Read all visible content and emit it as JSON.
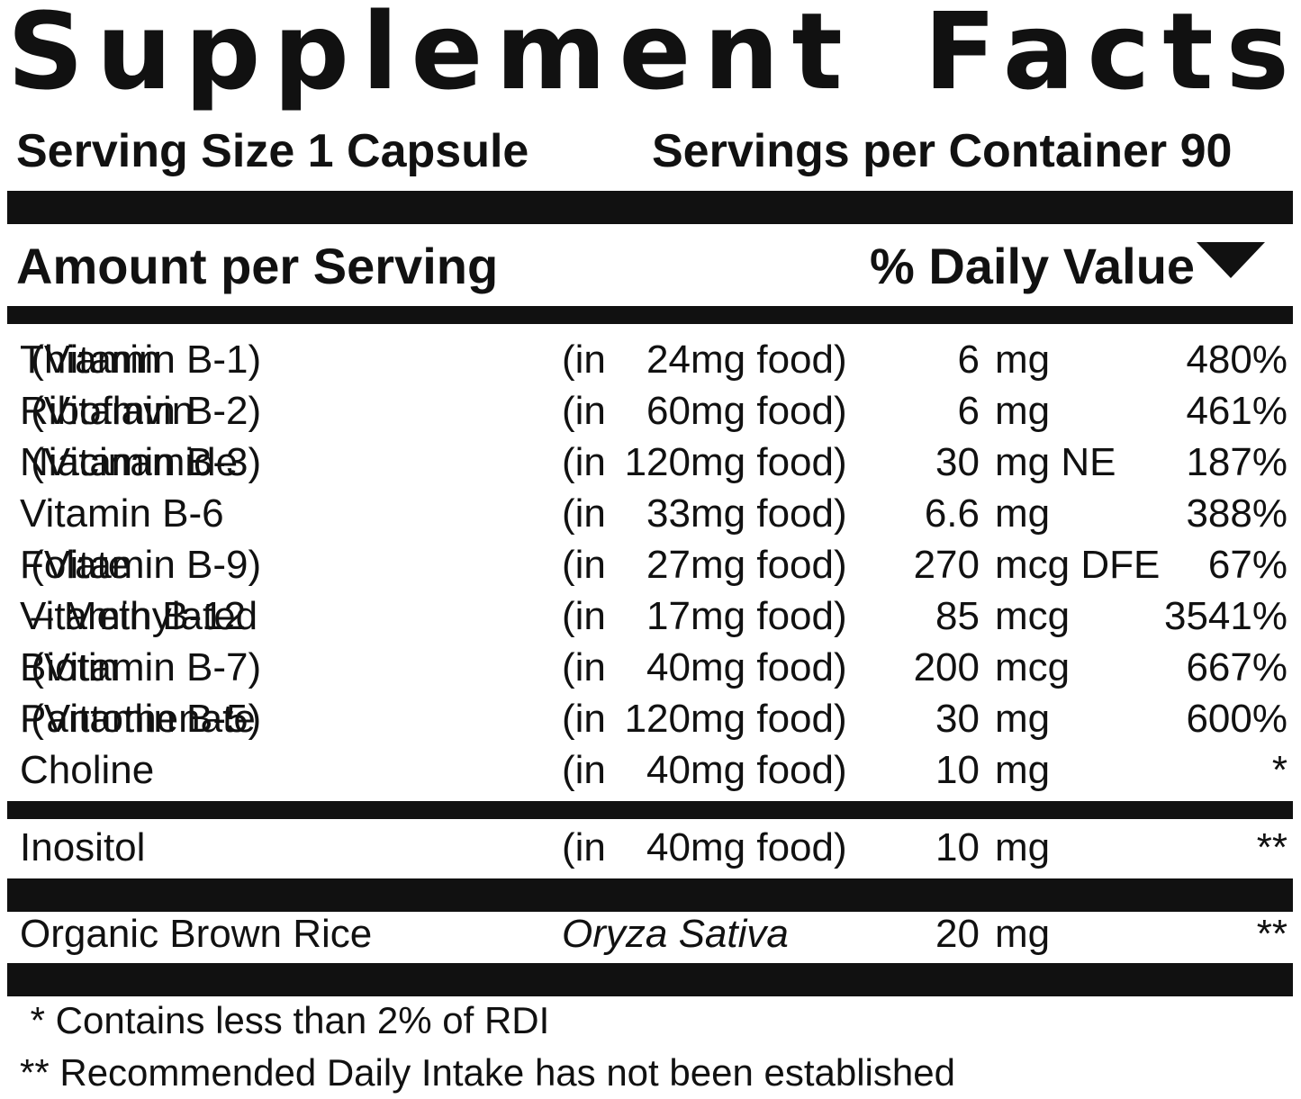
{
  "title": {
    "word1": "Supplement",
    "word2": "Facts"
  },
  "serving": {
    "size": "Serving Size 1 Capsule",
    "per_container": "Servings per Container 90"
  },
  "header": {
    "amount": "Amount per Serving",
    "daily_value": "% Daily Value"
  },
  "nutrients": [
    {
      "name": "Thiamin",
      "sub": " (Vitamin B-1)",
      "in": "(in",
      "food_amt": "24",
      "food_unit": "mg food)",
      "amount": "6",
      "unit": "mg",
      "dv": "480%"
    },
    {
      "name": "Riboflavin",
      "sub": " (Vitamin B-2)",
      "in": "(in",
      "food_amt": "60",
      "food_unit": "mg food)",
      "amount": "6",
      "unit": "mg",
      "dv": "461%"
    },
    {
      "name": "Niacinamide",
      "sub": " (Vitamin B-3)",
      "in": "(in",
      "food_amt": "120",
      "food_unit": "mg food)",
      "amount": "30",
      "unit": "mg NE",
      "dv": "187%"
    },
    {
      "name": "Vitamin B-6",
      "sub": "",
      "in": "(in",
      "food_amt": "33",
      "food_unit": "mg food)",
      "amount": "6.6",
      "unit": "mg",
      "dv": "388%"
    },
    {
      "name": "Folate",
      "sub": " (Vitamin B-9)",
      "in": "(in",
      "food_amt": "27",
      "food_unit": "mg food)",
      "amount": "270",
      "unit": "mcg DFE",
      "dv": "67%"
    },
    {
      "name": "Vitamin B-12",
      "sub": " – Methylated",
      "in": "(in",
      "food_amt": "17",
      "food_unit": "mg food)",
      "amount": "85",
      "unit": "mcg",
      "dv": "3541%"
    },
    {
      "name": "Biotin",
      "sub": " (Vitamin B-7)",
      "in": "(in",
      "food_amt": "40",
      "food_unit": "mg food)",
      "amount": "200",
      "unit": "mcg",
      "dv": "667%"
    },
    {
      "name": "Pantothenate",
      "sub": " (Vitamin B-5)",
      "in": "(in",
      "food_amt": "120",
      "food_unit": "mg food)",
      "amount": "30",
      "unit": "mg",
      "dv": "600%"
    },
    {
      "name": "Choline",
      "sub": "",
      "in": "(in",
      "food_amt": "40",
      "food_unit": "mg food)",
      "amount": "10",
      "unit": "mg",
      "dv": "*"
    }
  ],
  "inositol": {
    "name": "Inositol",
    "in": "(in",
    "food_amt": "40",
    "food_unit": "mg food)",
    "amount": "10",
    "unit": "mg",
    "dv": "**"
  },
  "rice": {
    "name": "Organic Brown Rice",
    "latin": "Oryza Sativa",
    "amount": "20",
    "unit": "mg",
    "dv": "**"
  },
  "footnotes": {
    "one": " * Contains less than 2% of RDI",
    "two": "** Recommended Daily Intake has not been established"
  }
}
